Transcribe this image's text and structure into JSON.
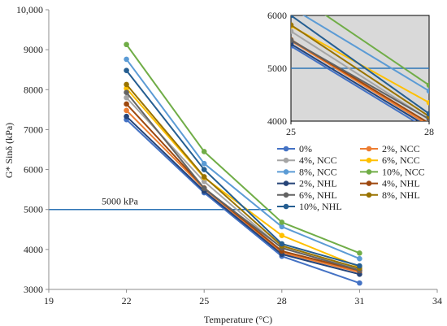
{
  "chart_data": {
    "type": "line",
    "title": "",
    "xlabel": "Temperature (°C)",
    "ylabel": "G* Sinδ (kPa)",
    "x": [
      22,
      25,
      28,
      31
    ],
    "xlim": [
      19,
      34
    ],
    "ylim": [
      3000,
      10000
    ],
    "xticks": [
      19,
      22,
      25,
      28,
      31,
      34
    ],
    "yticks": [
      3000,
      4000,
      5000,
      6000,
      7000,
      8000,
      9000,
      10000
    ],
    "ytick_labels": [
      "3000",
      "4000",
      "5000",
      "6000",
      "7000",
      "8000",
      "9000",
      "10,000"
    ],
    "grid": false,
    "legend_position": "right, inside plot below inset",
    "reference_line": {
      "value": 5000,
      "label": "5000 kPa",
      "color": "#2e75b6"
    },
    "series": [
      {
        "name": "0%",
        "color": "#4472c4",
        "values": [
          7250,
          5420,
          3830,
          3160
        ]
      },
      {
        "name": "2%, NCC",
        "color": "#ed7d31",
        "values": [
          7480,
          5520,
          3920,
          3430
        ]
      },
      {
        "name": "4%, NCC",
        "color": "#a5a5a5",
        "values": [
          7800,
          5700,
          4030,
          3500
        ]
      },
      {
        "name": "6%, NCC",
        "color": "#ffc000",
        "values": [
          8030,
          5800,
          4350,
          3560
        ]
      },
      {
        "name": "8%, NCC",
        "color": "#5b9bd5",
        "values": [
          8760,
          6150,
          4570,
          3770
        ]
      },
      {
        "name": "10%, NCC",
        "color": "#70ad47",
        "values": [
          9130,
          6450,
          4680,
          3910
        ]
      },
      {
        "name": "2%, NHL",
        "color": "#264478",
        "values": [
          7330,
          5460,
          3880,
          3380
        ]
      },
      {
        "name": "4%, NHL",
        "color": "#9e480e",
        "values": [
          7640,
          5540,
          3960,
          3470
        ]
      },
      {
        "name": "6%, NHL",
        "color": "#636363",
        "values": [
          7930,
          5530,
          4040,
          3480
        ]
      },
      {
        "name": "8%, NHL",
        "color": "#997300",
        "values": [
          8130,
          5820,
          4090,
          3530
        ]
      },
      {
        "name": "10%, NHL",
        "color": "#255e91",
        "values": [
          8480,
          6000,
          4140,
          3590
        ]
      }
    ],
    "inset": {
      "xlim": [
        25,
        28
      ],
      "ylim": [
        4000,
        6000
      ],
      "xticks": [
        25,
        28
      ],
      "yticks": [
        4000,
        5000,
        6000
      ],
      "background": "#d9d9d9"
    }
  }
}
